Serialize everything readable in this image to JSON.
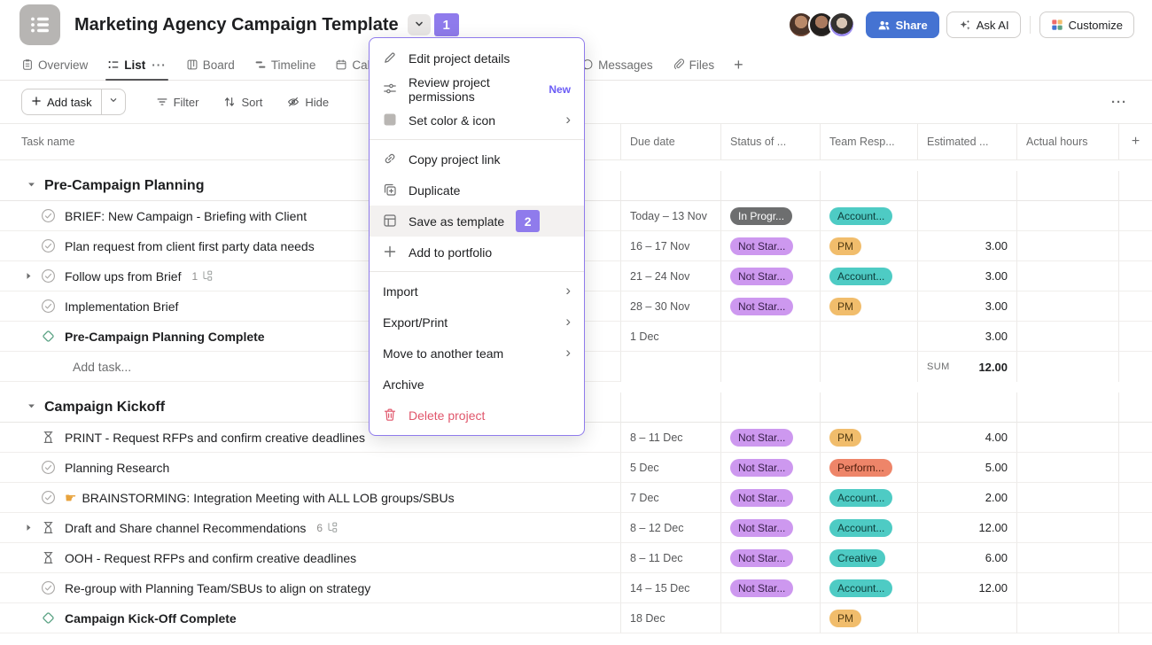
{
  "annotations": {
    "step1": "1",
    "step2": "2"
  },
  "header": {
    "title": "Marketing Agency Campaign Template",
    "share_label": "Share",
    "ask_ai_label": "Ask AI",
    "customize_label": "Customize",
    "avatar_count": 3
  },
  "tabs": {
    "items": [
      {
        "id": "overview",
        "label": "Overview",
        "icon": "overview"
      },
      {
        "id": "list",
        "label": "List",
        "icon": "list",
        "active": true,
        "overflow": "···"
      },
      {
        "id": "board",
        "label": "Board",
        "icon": "board"
      },
      {
        "id": "timeline",
        "label": "Timeline",
        "icon": "timeline"
      },
      {
        "id": "calendar",
        "label": "Calendar",
        "icon": "calendar"
      },
      {
        "id": "messages",
        "label": "Messages",
        "icon": "messages"
      },
      {
        "id": "files",
        "label": "Files",
        "icon": "files"
      },
      {
        "id": "add-tab",
        "label": "+",
        "icon": null
      }
    ]
  },
  "toolbar": {
    "add_task": "Add task",
    "filter": "Filter",
    "sort": "Sort",
    "hide": "Hide",
    "overflow": "···"
  },
  "table": {
    "columns": [
      "Task name",
      "Due date",
      "Status of ...",
      "Team Resp...",
      "Estimated ...",
      "Actual hours",
      "+"
    ]
  },
  "menu": {
    "items": [
      {
        "icon": "pencil",
        "label": "Edit project details"
      },
      {
        "icon": "sliders",
        "label": "Review project permissions",
        "badge": "New"
      },
      {
        "icon": "swatch",
        "label": "Set color & icon",
        "submenu": true
      },
      {
        "divider": true
      },
      {
        "icon": "link",
        "label": "Copy project link"
      },
      {
        "icon": "duplicate",
        "label": "Duplicate"
      },
      {
        "icon": "template",
        "label": "Save as template",
        "highlighted": true,
        "annotation": "2"
      },
      {
        "icon": "plus",
        "label": "Add to portfolio"
      },
      {
        "divider": true
      },
      {
        "icon": null,
        "label": "Import",
        "submenu": true
      },
      {
        "icon": null,
        "label": "Export/Print",
        "submenu": true
      },
      {
        "icon": null,
        "label": "Move to another team",
        "submenu": true
      },
      {
        "icon": null,
        "label": "Archive"
      },
      {
        "icon": "trash",
        "label": "Delete project",
        "danger": true
      }
    ]
  },
  "sections": [
    {
      "title": "Pre-Campaign Planning",
      "rows": [
        {
          "icon": "check",
          "name": "BRIEF:  New Campaign - Briefing with Client",
          "due": "Today – 13 Nov",
          "status": {
            "label": "In Progr...",
            "type": "in-progress"
          },
          "team": {
            "label": "Account...",
            "color": "teal"
          },
          "estimated": "",
          "actual": ""
        },
        {
          "icon": "check",
          "name": "Plan request from client first party data needs",
          "due": "16 – 17 Nov",
          "status": {
            "label": "Not Star...",
            "type": "not-started"
          },
          "team": {
            "label": "PM",
            "color": "orange"
          },
          "estimated": "3.00",
          "actual": ""
        },
        {
          "icon": "check",
          "expand": true,
          "name": "Follow ups from Brief",
          "subtask_count": "1",
          "due": "21 – 24 Nov",
          "status": {
            "label": "Not Star...",
            "type": "not-started"
          },
          "team": {
            "label": "Account...",
            "color": "teal"
          },
          "estimated": "3.00",
          "actual": ""
        },
        {
          "icon": "check",
          "name": "Implementation Brief",
          "due": "28 – 30 Nov",
          "status": {
            "label": "Not Star...",
            "type": "not-started"
          },
          "team": {
            "label": "PM",
            "color": "orange"
          },
          "estimated": "3.00",
          "actual": ""
        },
        {
          "icon": "milestone",
          "bold": true,
          "name": "Pre-Campaign Planning Complete",
          "due": "1 Dec",
          "status": null,
          "team": null,
          "estimated": "3.00",
          "actual": ""
        }
      ],
      "footer": {
        "add_task_label": "Add task...",
        "sum_label": "SUM",
        "sum_value": "12.00"
      }
    },
    {
      "title": "Campaign Kickoff",
      "rows": [
        {
          "icon": "approval",
          "name": "PRINT - Request RFPs and confirm creative deadlines",
          "due": "8 – 11 Dec",
          "status": {
            "label": "Not Star...",
            "type": "not-started"
          },
          "team": {
            "label": "PM",
            "color": "orange"
          },
          "estimated": "4.00",
          "actual": ""
        },
        {
          "icon": "check",
          "name": "Planning Research",
          "due": "5 Dec",
          "status": {
            "label": "Not Star...",
            "type": "not-started"
          },
          "team": {
            "label": "Perform...",
            "color": "salmon"
          },
          "estimated": "5.00",
          "actual": ""
        },
        {
          "icon": "check",
          "emoji": "☛",
          "name": "BRAINSTORMING: Integration Meeting with ALL LOB groups/SBUs",
          "due": "7 Dec",
          "status": {
            "label": "Not Star...",
            "type": "not-started"
          },
          "team": {
            "label": "Account...",
            "color": "teal"
          },
          "estimated": "2.00",
          "actual": ""
        },
        {
          "icon": "approval",
          "expand": true,
          "name": "Draft and Share channel Recommendations",
          "subtask_count": "6",
          "due": "8 – 12 Dec",
          "status": {
            "label": "Not Star...",
            "type": "not-started"
          },
          "team": {
            "label": "Account...",
            "color": "teal"
          },
          "estimated": "12.00",
          "actual": ""
        },
        {
          "icon": "approval",
          "name": "OOH - Request RFPs and confirm creative deadlines",
          "due": "8 – 11 Dec",
          "status": {
            "label": "Not Star...",
            "type": "not-started"
          },
          "team": {
            "label": "Creative",
            "color": "teal"
          },
          "estimated": "6.00",
          "actual": ""
        },
        {
          "icon": "check",
          "name": "Re-group with Planning Team/SBUs to align on strategy",
          "due": "14 – 15 Dec",
          "status": {
            "label": "Not Star...",
            "type": "not-started"
          },
          "team": {
            "label": "Account...",
            "color": "teal"
          },
          "estimated": "12.00",
          "actual": ""
        },
        {
          "icon": "milestone",
          "bold": true,
          "name": "Campaign Kick-Off Complete",
          "due": "18 Dec",
          "status": null,
          "team": {
            "label": "PM",
            "color": "orange"
          },
          "estimated": "",
          "actual": ""
        }
      ]
    }
  ],
  "colors": {
    "accent_purple": "#8f7bec",
    "share_blue": "#4573d2",
    "new_badge_purple": "#6b5cf6",
    "danger_red": "#e0566b",
    "milestone_green": "#58a182",
    "status_in_progress_bg": "#6d6e6f",
    "status_in_progress_text": "#ffffff",
    "status_not_started_bg": "#cd98ef",
    "status_not_started_text": "#38204a",
    "team_teal_bg": "#4ecbc4",
    "team_teal_text": "#0d3d3a",
    "team_orange_bg": "#f1bd6c",
    "team_orange_text": "#503a12",
    "team_salmon_bg": "#ee8569",
    "team_salmon_text": "#4e1d0c"
  }
}
